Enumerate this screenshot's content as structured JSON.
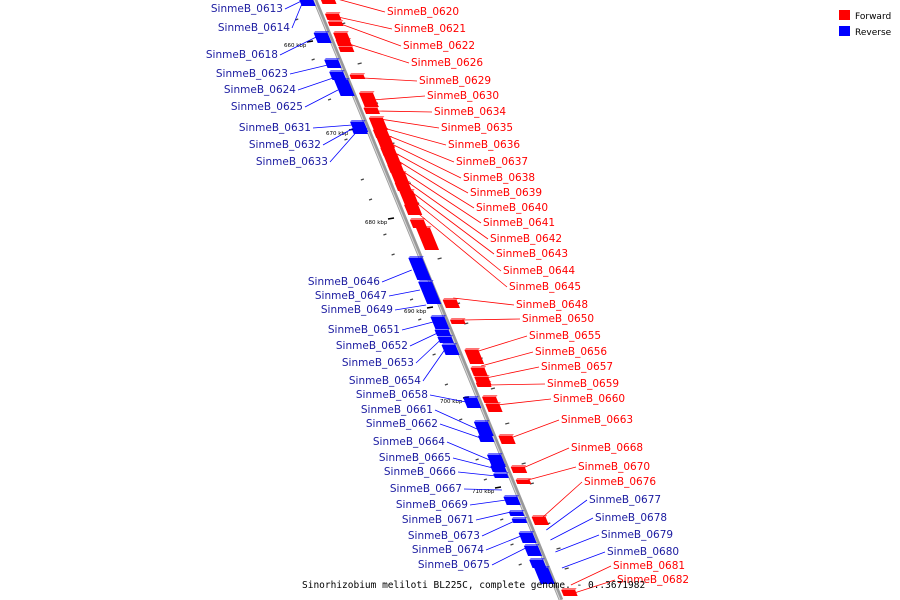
{
  "legend": {
    "forward_label": "Forward",
    "reverse_label": "Reverse",
    "forward_color": "#ff0000",
    "reverse_color": "#0000ff"
  },
  "caption": "Sinorhizobium meliloti BL225C, complete genome. - 0..3671982",
  "ticks": [
    "660 kbp",
    "670 kbp",
    "680 kbp",
    "690 kbp",
    "700 kbp",
    "710 kbp"
  ],
  "forward_genes": [
    "SinmeB_0620",
    "SinmeB_0621",
    "SinmeB_0622",
    "SinmeB_0626",
    "SinmeB_0629",
    "SinmeB_0630",
    "SinmeB_0634",
    "SinmeB_0635",
    "SinmeB_0636",
    "SinmeB_0637",
    "SinmeB_0638",
    "SinmeB_0639",
    "SinmeB_0640",
    "SinmeB_0641",
    "SinmeB_0642",
    "SinmeB_0643",
    "SinmeB_0644",
    "SinmeB_0645",
    "SinmeB_0648",
    "SinmeB_0650",
    "SinmeB_0655",
    "SinmeB_0656",
    "SinmeB_0657",
    "SinmeB_0659",
    "SinmeB_0660",
    "SinmeB_0663",
    "SinmeB_0668",
    "SinmeB_0670",
    "SinmeB_0676",
    "SinmeB_0681",
    "SinmeB_0682"
  ],
  "reverse_genes": [
    "SinmeB_0613",
    "SinmeB_0614",
    "SinmeB_0618",
    "SinmeB_0623",
    "SinmeB_0624",
    "SinmeB_0625",
    "SinmeB_0631",
    "SinmeB_0632",
    "SinmeB_0633",
    "SinmeB_0646",
    "SinmeB_0647",
    "SinmeB_0649",
    "SinmeB_0651",
    "SinmeB_0652",
    "SinmeB_0653",
    "SinmeB_0654",
    "SinmeB_0658",
    "SinmeB_0661",
    "SinmeB_0662",
    "SinmeB_0664",
    "SinmeB_0665",
    "SinmeB_0666",
    "SinmeB_0667",
    "SinmeB_0669",
    "SinmeB_0671",
    "SinmeB_0673",
    "SinmeB_0674",
    "SinmeB_0675",
    "SinmeB_0677",
    "SinmeB_0678",
    "SinmeB_0679",
    "SinmeB_0680"
  ]
}
